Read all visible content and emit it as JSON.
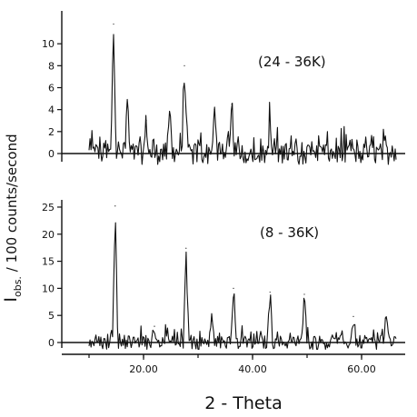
{
  "chart_data": {
    "type": "line",
    "xlabel": "2 - Theta",
    "ylabel": "I obs. / 100 counts/second",
    "ylabel_main": "I",
    "ylabel_sub": "obs.",
    "ylabel_rest": " / 100 counts/second",
    "x_ticks": [
      "20.00",
      "40.00",
      "60.00"
    ],
    "xlim": [
      5,
      68
    ],
    "panels": [
      {
        "label": "(24 - 36K)",
        "ylim": [
          -1,
          12
        ],
        "yticks": [
          "0",
          "2",
          "4",
          "6",
          "8",
          "10"
        ],
        "peaks": [
          {
            "x": 14.5,
            "y": 11.8
          },
          {
            "x": 27.5,
            "y": 8.0
          },
          {
            "x": 36.2,
            "y": 4.5
          },
          {
            "x": 33.0,
            "y": 4.0
          },
          {
            "x": 17.0,
            "y": 4.5
          },
          {
            "x": 43.2,
            "y": 3.0
          },
          {
            "x": 24.8,
            "y": 3.5
          },
          {
            "x": 20.5,
            "y": 3.0
          }
        ]
      },
      {
        "label": "(8 - 36K)",
        "ylim": [
          -1,
          26
        ],
        "yticks": [
          "0",
          "5",
          "10",
          "15",
          "20",
          "25"
        ],
        "peaks": [
          {
            "x": 14.8,
            "y": 25.2
          },
          {
            "x": 27.8,
            "y": 17.4
          },
          {
            "x": 36.5,
            "y": 10.0
          },
          {
            "x": 43.2,
            "y": 9.3
          },
          {
            "x": 49.5,
            "y": 8.9
          },
          {
            "x": 32.5,
            "y": 4.0
          },
          {
            "x": 58.5,
            "y": 4.8
          },
          {
            "x": 64.5,
            "y": 4.5
          },
          {
            "x": 22.0,
            "y": 3.0
          }
        ]
      }
    ]
  }
}
